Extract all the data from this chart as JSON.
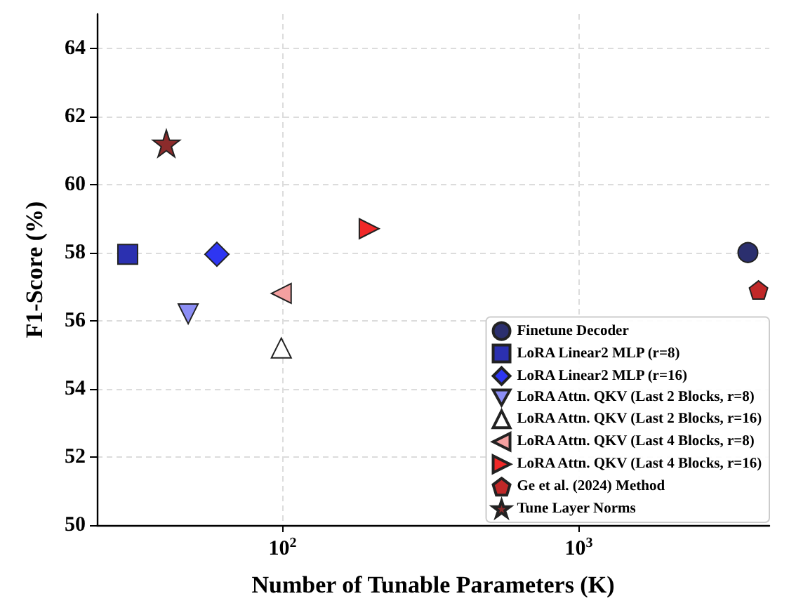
{
  "chart_data": {
    "type": "scatter",
    "xlabel": "Number of Tunable Parameters (K)",
    "ylabel": "F1-Score (%)",
    "log": "x",
    "xlim": [
      23.6,
      4400
    ],
    "ylim": [
      50,
      65
    ],
    "xticks": [
      {
        "value": 100,
        "label": "10$^{2}$"
      },
      {
        "value": 1000,
        "label": "10$^{3}$"
      }
    ],
    "yticks": [
      50,
      52,
      54,
      56,
      58,
      60,
      62,
      64
    ],
    "grid": true,
    "legend": "bottom right",
    "series": [
      {
        "name": "Finetune Decoder",
        "color": "#2b2f6e",
        "marker": "circle",
        "x": [
          3725
        ],
        "values": [
          58.0
        ]
      },
      {
        "name": "LoRA Linear2 MLP (r=8)",
        "color": "#2b30b0",
        "marker": "square",
        "x": [
          30
        ],
        "values": [
          57.95
        ]
      },
      {
        "name": "LoRA Linear2 MLP (r=16)",
        "color": "#2e36f2",
        "marker": "diamond",
        "x": [
          60
        ],
        "values": [
          57.95
        ]
      },
      {
        "name": "LoRA Attn. QKV (Last 2 Blocks, r=8)",
        "color": "#8c8ef5",
        "marker": "triangle_down",
        "x": [
          48
        ],
        "values": [
          56.2
        ]
      },
      {
        "name": "LoRA Attn. QKV (Last 2 Blocks, r=16)",
        "color": "#ffffff",
        "marker": "triangle",
        "x": [
          99
        ],
        "values": [
          55.2
        ]
      },
      {
        "name": "LoRA Attn. QKV (Last 4 Blocks, r=8)",
        "color": "#f4a0a0",
        "marker": "triangle_left",
        "x": [
          99
        ],
        "values": [
          56.8
        ]
      },
      {
        "name": "LoRA Attn. QKV (Last 4 Blocks, r=16)",
        "color": "#f02828",
        "marker": "triangle_right",
        "x": [
          196
        ],
        "values": [
          58.7
        ]
      },
      {
        "name": "Ge et al. (2024) Method",
        "color": "#c02828",
        "x": [
          4045
        ],
        "values": [
          56.9
        ]
      },
      {
        "name": "Tune Layer Norms",
        "color": "#8b2b2b",
        "marker": "star",
        "x": [
          40.5
        ],
        "values": [
          61.2
        ]
      }
    ]
  }
}
